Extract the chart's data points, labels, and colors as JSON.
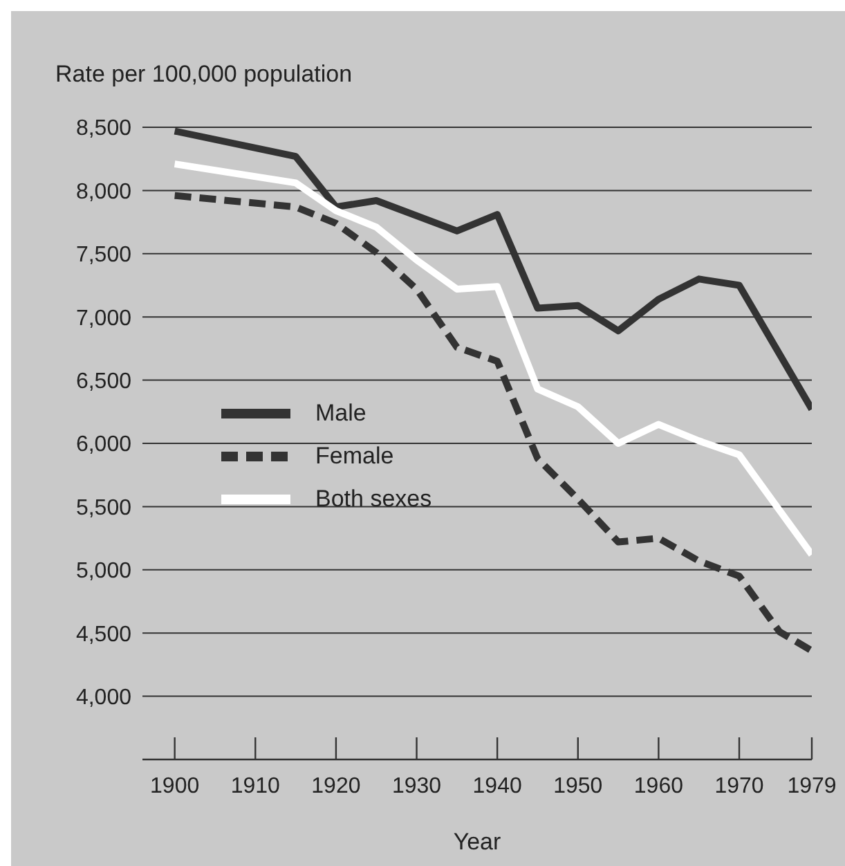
{
  "chart_data": {
    "type": "line",
    "ylabel": "Rate per 100,000 population",
    "xlabel": "Year",
    "x": [
      1900,
      1915,
      1920,
      1925,
      1935,
      1940,
      1945,
      1950,
      1955,
      1960,
      1965,
      1970,
      1979
    ],
    "series": [
      {
        "name": "Male",
        "color": "#333333",
        "line_style": "solid",
        "values": [
          8470,
          8270,
          7870,
          7920,
          7680,
          7810,
          7070,
          7090,
          6890,
          7140,
          7300,
          7250,
          6270
        ]
      },
      {
        "name": "Female",
        "color": "#333333",
        "line_style": "dashed",
        "x": [
          1900,
          1915,
          1920,
          1925,
          1930,
          1935,
          1940,
          1945,
          1950,
          1955,
          1960,
          1965,
          1970,
          1975,
          1979
        ],
        "values": [
          7960,
          7870,
          7740,
          7510,
          7220,
          6760,
          6650,
          5880,
          5560,
          5220,
          5250,
          5070,
          4950,
          4510,
          4360
        ]
      },
      {
        "name": "Both sexes",
        "color": "#ffffff",
        "line_style": "solid",
        "x": [
          1900,
          1915,
          1920,
          1925,
          1930,
          1935,
          1940,
          1945,
          1950,
          1955,
          1960,
          1965,
          1970,
          1975,
          1979
        ],
        "values": [
          8210,
          8060,
          7840,
          7710,
          7450,
          7220,
          7240,
          6430,
          6290,
          6000,
          6150,
          6020,
          5910,
          5470,
          5120
        ]
      }
    ],
    "xlim": [
      1896,
      1979
    ],
    "xticks": [
      1900,
      1910,
      1920,
      1930,
      1940,
      1950,
      1960,
      1970,
      1979
    ],
    "ylim": [
      3500,
      8500
    ],
    "yticks": [
      {
        "value": 4000,
        "label": "4,000"
      },
      {
        "value": 4500,
        "label": "4,500"
      },
      {
        "value": 5000,
        "label": "5,000"
      },
      {
        "value": 5500,
        "label": "5,500"
      },
      {
        "value": 6000,
        "label": "6,000"
      },
      {
        "value": 6500,
        "label": "6,500"
      },
      {
        "value": 7000,
        "label": "7,000"
      },
      {
        "value": 7500,
        "label": "7,500"
      },
      {
        "value": 8000,
        "label": "8,000"
      },
      {
        "value": 8500,
        "label": "8,500"
      }
    ],
    "grid": "y",
    "legend": "left",
    "marker": "none"
  }
}
